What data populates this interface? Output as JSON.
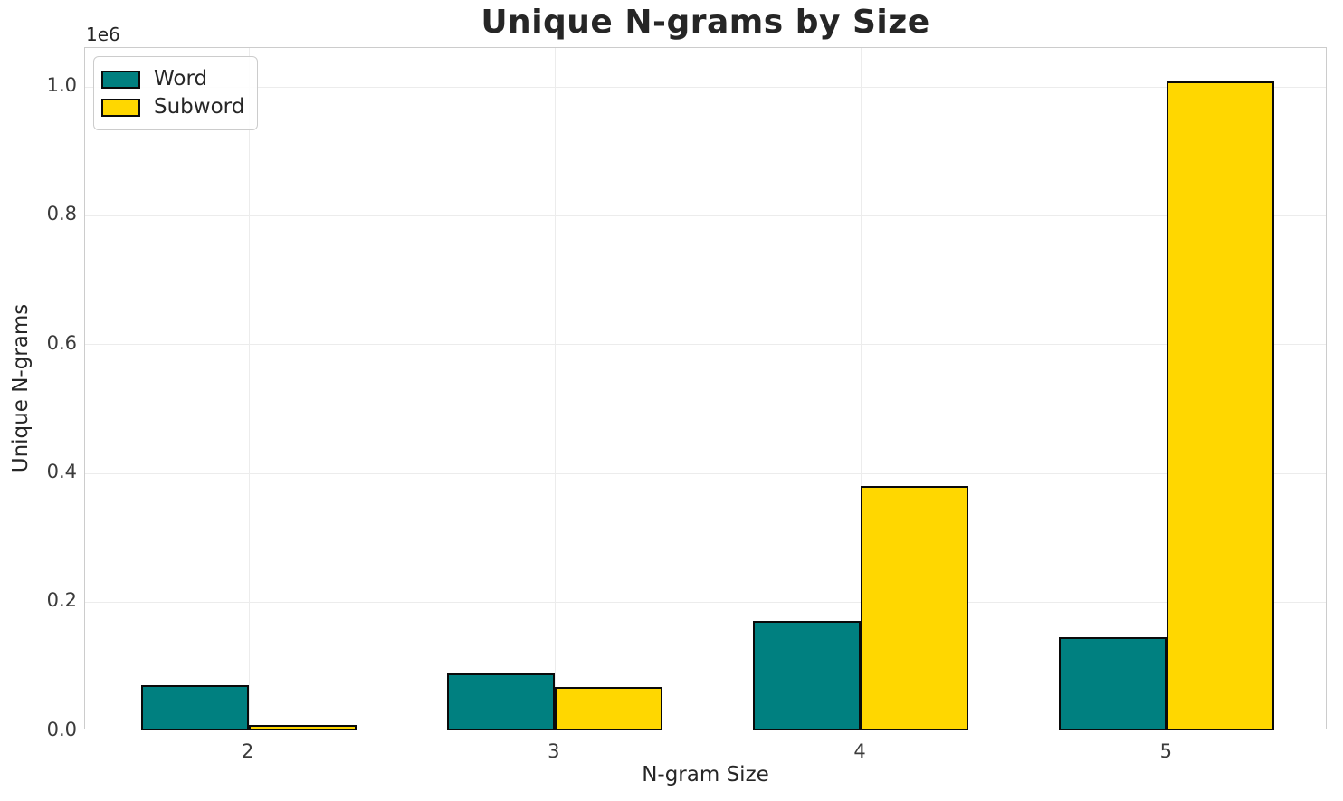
{
  "chart_data": {
    "type": "bar",
    "title": "Unique N-grams by Size",
    "xlabel": "N-gram Size",
    "ylabel": "Unique N-grams",
    "y_offset_label": "1e6",
    "categories": [
      "2",
      "3",
      "4",
      "5"
    ],
    "series": [
      {
        "name": "Word",
        "color": "#008080",
        "edge_color": "#0a0a0a",
        "values": [
          71000,
          89000,
          170000,
          145000
        ]
      },
      {
        "name": "Subword",
        "color": "#FFD700",
        "edge_color": "#0a0a0a",
        "values": [
          8500,
          68000,
          380000,
          1008000
        ]
      }
    ],
    "ylim": [
      0,
      1060000
    ],
    "yticks": [
      {
        "value": 0,
        "label": "0.0"
      },
      {
        "value": 200000,
        "label": "0.2"
      },
      {
        "value": 400000,
        "label": "0.4"
      },
      {
        "value": 600000,
        "label": "0.6"
      },
      {
        "value": 800000,
        "label": "0.8"
      },
      {
        "value": 1000000,
        "label": "1.0"
      }
    ],
    "grid": true,
    "legend_position": "upper left",
    "colors": {
      "grid": "#ececec",
      "spine": "#cccccc",
      "tick_text": "#3b3b3b",
      "label_text": "#262626",
      "background": "#ffffff"
    }
  }
}
